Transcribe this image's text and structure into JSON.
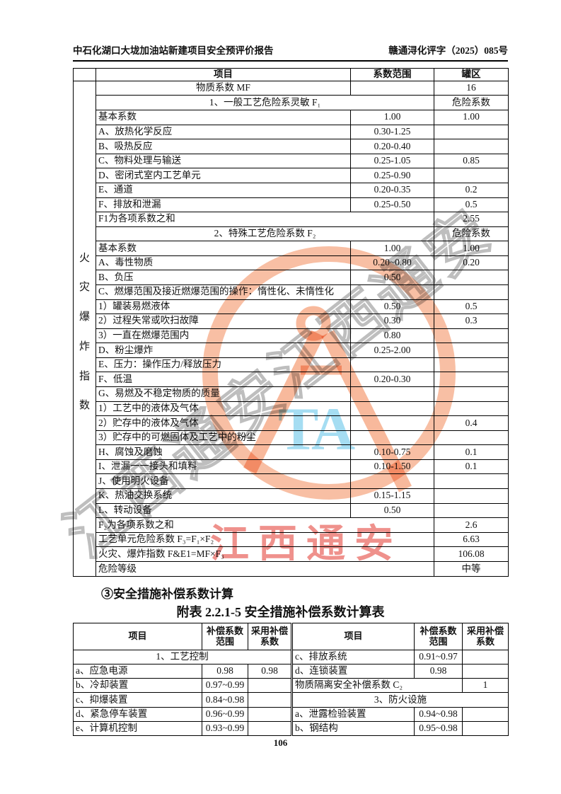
{
  "page": {
    "header_left": "中石化湖口大垅加油站新建项目安全预评价报告",
    "header_right": "赣通浔化评字（2025）085号",
    "page_number": "106"
  },
  "headings": {
    "item3": "③安全措施补偿系数计算",
    "table2_title": "附表 2.2.1-5 安全措施补偿系数计算表"
  },
  "table1": {
    "side_label": [
      "火",
      "灾",
      "爆",
      "炸",
      "指",
      "数"
    ],
    "columns": [
      "项目",
      "系数范围",
      "罐区"
    ],
    "rows": [
      {
        "t": "m",
        "l": "物质系数 MF",
        "r": "",
        "v": "16"
      },
      {
        "t": "s",
        "l": "1、一般工艺危险系灵敏 F₁",
        "v": "危险系数"
      },
      {
        "t": "n",
        "l": "基本系数",
        "r": "1.00",
        "v": "1.00"
      },
      {
        "t": "n",
        "l": "A、放热化学反应",
        "r": "0.30-1.25",
        "v": ""
      },
      {
        "t": "n",
        "l": "B、吸热反应",
        "r": "0.20-0.40",
        "v": ""
      },
      {
        "t": "n",
        "l": "C、物料处理与输送",
        "r": "0.25-1.05",
        "v": "0.85"
      },
      {
        "t": "n",
        "l": "D、密闭式室内工艺单元",
        "r": "0.25-0.90",
        "v": ""
      },
      {
        "t": "n",
        "l": "E、通道",
        "r": "0.20-0.35",
        "v": "0.2"
      },
      {
        "t": "n",
        "l": "F、排放和泄漏",
        "r": "0.25-0.50",
        "v": "0.5"
      },
      {
        "t": "x",
        "l": "F1为各项系数之和",
        "v": "2.55"
      },
      {
        "t": "s",
        "l": "2、特殊工艺危险系数 F₂",
        "v": "危险系数"
      },
      {
        "t": "n",
        "l": "基本系数",
        "r": "1.00",
        "v": "1.00"
      },
      {
        "t": "n",
        "l": "A、毒性物质",
        "r": "0.20~0.80",
        "v": "0.20"
      },
      {
        "t": "n",
        "l": "B、负压",
        "r": "0.50",
        "v": ""
      },
      {
        "t": "n",
        "l": "C、燃爆范围及接近燃爆范围的操作：惰性化、未惰性化",
        "r": "",
        "v": ""
      },
      {
        "t": "n",
        "l": "1）罐装易燃液体",
        "r": "0.50",
        "v": "0.5"
      },
      {
        "t": "n",
        "l": "2）过程失常或吹扫故障",
        "r": "0.30",
        "v": "0.3"
      },
      {
        "t": "n",
        "l": "3）一直在燃爆范围内",
        "r": "0.80",
        "v": ""
      },
      {
        "t": "n",
        "l": "D、粉尘爆炸",
        "r": "0.25-2.00",
        "v": ""
      },
      {
        "t": "n",
        "l": "E、压力：操作压力/释放压力",
        "r": "",
        "v": ""
      },
      {
        "t": "n",
        "l": "F、低温",
        "r": "0.20-0.30",
        "v": ""
      },
      {
        "t": "n",
        "l": "G、易燃及不稳定物质的质量",
        "r": "",
        "v": ""
      },
      {
        "t": "n",
        "l": "1）工艺中的液体及气体",
        "r": "",
        "v": ""
      },
      {
        "t": "n",
        "l": "2）贮存中的液体及气体",
        "r": "",
        "v": "0.4"
      },
      {
        "t": "n",
        "l": "3）贮存中的可燃固体及工艺中的粉尘",
        "r": "",
        "v": ""
      },
      {
        "t": "n",
        "l": "H、腐蚀及磨蚀",
        "r": "0.10-0.75",
        "v": "0.1"
      },
      {
        "t": "n",
        "l": "I、泄漏一一接头和填料",
        "r": "0.10-1.50",
        "v": "0.1"
      },
      {
        "t": "n",
        "l": "J、使用明火设备",
        "r": "",
        "v": ""
      },
      {
        "t": "n",
        "l": "K、热油交换系统",
        "r": "0.15-1.15",
        "v": ""
      },
      {
        "t": "n",
        "l": "L、转动设备",
        "r": "0.50",
        "v": ""
      },
      {
        "t": "x",
        "l": "F₂为各项系数之和",
        "v": "2.6"
      },
      {
        "t": "x",
        "l": "工艺单元危险系数 F₃=F₁×F₂",
        "v": "6.63"
      },
      {
        "t": "x",
        "l": "火灾、爆炸指数 F&E1=MF×F₃",
        "v": "106.08"
      },
      {
        "t": "x",
        "l": "危险等级",
        "v": "中等"
      }
    ]
  },
  "table2": {
    "columns": [
      "项目",
      "补偿系数范围",
      "采用补偿系数"
    ],
    "rows": [
      {
        "left": {
          "t": "s",
          "l": "1、工艺控制"
        },
        "right": {
          "t": "n",
          "l": "c、排放系统",
          "r": "0.91~0.97",
          "v": ""
        }
      },
      {
        "left": {
          "t": "n",
          "l": "a、应急电源",
          "r": "0.98",
          "v": "0.98"
        },
        "right": {
          "t": "n",
          "l": "d、连锁装置",
          "r": "0.98",
          "v": ""
        }
      },
      {
        "left": {
          "t": "n",
          "l": "b、冷却装置",
          "r": "0.97~0.99",
          "v": ""
        },
        "right": {
          "t": "s2",
          "l": "物质隔离安全补偿系数 C₂",
          "v": "1"
        }
      },
      {
        "left": {
          "t": "n",
          "l": "c、抑爆装置",
          "r": "0.84~0.98",
          "v": ""
        },
        "right": {
          "t": "s",
          "l": "3、防火设施"
        }
      },
      {
        "left": {
          "t": "n",
          "l": "d、紧急停车装置",
          "r": "0.96~0.99",
          "v": ""
        },
        "right": {
          "t": "n",
          "l": "a、泄露检验装置",
          "r": "0.94~0.98",
          "v": ""
        }
      },
      {
        "left": {
          "t": "n",
          "l": "e、计算机控制",
          "r": "0.93~0.99",
          "v": ""
        },
        "right": {
          "t": "n",
          "l": "b、钢结构",
          "r": "0.95~0.98",
          "v": ""
        }
      }
    ]
  },
  "watermark": {
    "red_stamp_text": "江西通安",
    "diagonal_text": "江西通安江西通安",
    "latin_text": "TA",
    "orange": "#f2804a",
    "red": "#e34238",
    "cyan": "#69c6e9",
    "gray": "#7d7d7d"
  }
}
